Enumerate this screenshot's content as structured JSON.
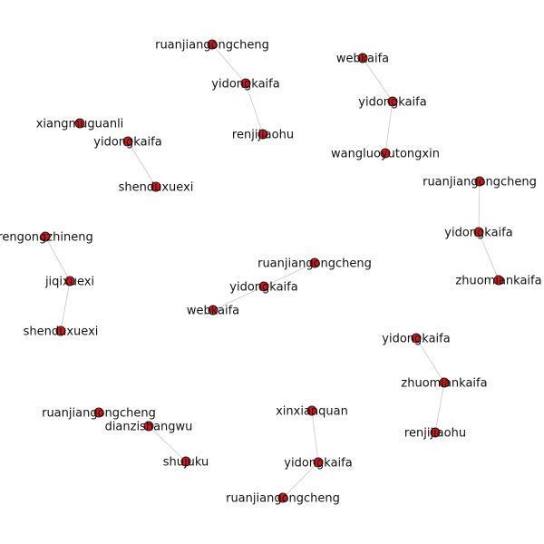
{
  "graph": {
    "colors": {
      "node_fill": "#dd1111",
      "node_stroke": "#222222",
      "edge": "#c8c8c8",
      "label": "#111111"
    },
    "nodes": [
      {
        "id": "n1",
        "label": "ruanjiangongcheng"
      },
      {
        "id": "n2",
        "label": "yidongkaifa"
      },
      {
        "id": "n3",
        "label": "renjijiaohu"
      },
      {
        "id": "n4",
        "label": "webkaifa"
      },
      {
        "id": "n5",
        "label": "yidongkaifa"
      },
      {
        "id": "n6",
        "label": "wangluoyutongxin"
      },
      {
        "id": "n7",
        "label": "xiangmuguanli"
      },
      {
        "id": "n8",
        "label": "yidongkaifa"
      },
      {
        "id": "n9",
        "label": "shenduxuexi"
      },
      {
        "id": "n10",
        "label": "ruanjiangongcheng"
      },
      {
        "id": "n11",
        "label": "yidongkaifa"
      },
      {
        "id": "n12",
        "label": "zhuomiankaifa"
      },
      {
        "id": "n13",
        "label": "rengongzhineng"
      },
      {
        "id": "n14",
        "label": "jiqixuexi"
      },
      {
        "id": "n15",
        "label": "shenduxuexi"
      },
      {
        "id": "n16",
        "label": "ruanjiangongcheng"
      },
      {
        "id": "n17",
        "label": "yidongkaifa"
      },
      {
        "id": "n18",
        "label": "webkaifa"
      },
      {
        "id": "n19",
        "label": "yidongkaifa"
      },
      {
        "id": "n20",
        "label": "zhuomiankaifa"
      },
      {
        "id": "n21",
        "label": "renjijiaohu"
      },
      {
        "id": "n22",
        "label": "ruanjiangongcheng"
      },
      {
        "id": "n23",
        "label": "dianzishangwu"
      },
      {
        "id": "n24",
        "label": "shujuku"
      },
      {
        "id": "n25",
        "label": "xinxianquan"
      },
      {
        "id": "n26",
        "label": "yidongkaifa"
      },
      {
        "id": "n27",
        "label": "ruanjiangongcheng"
      }
    ],
    "edges": [
      [
        "n1",
        "n2"
      ],
      [
        "n2",
        "n3"
      ],
      [
        "n4",
        "n5"
      ],
      [
        "n5",
        "n6"
      ],
      [
        "n8",
        "n9"
      ],
      [
        "n10",
        "n11"
      ],
      [
        "n11",
        "n12"
      ],
      [
        "n13",
        "n14"
      ],
      [
        "n14",
        "n15"
      ],
      [
        "n16",
        "n17"
      ],
      [
        "n17",
        "n18"
      ],
      [
        "n19",
        "n20"
      ],
      [
        "n20",
        "n21"
      ],
      [
        "n23",
        "n24"
      ],
      [
        "n25",
        "n26"
      ],
      [
        "n26",
        "n27"
      ]
    ]
  }
}
